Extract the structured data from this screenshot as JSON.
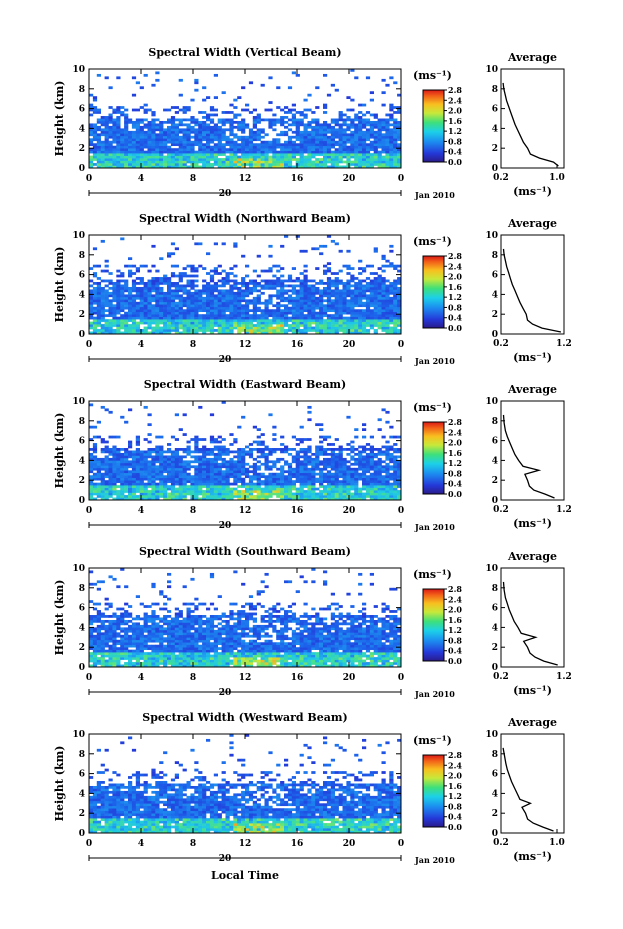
{
  "figure": {
    "xlabel": "Local Time",
    "date_label": "Jan 2010",
    "date_day": "20",
    "ylabel": "Height (km)",
    "colorbar_unit": "(ms⁻¹)",
    "colorbar_ticks": [
      "2.8",
      "2.4",
      "2.0",
      "1.6",
      "1.2",
      "0.8",
      "0.4",
      "0.0"
    ],
    "profile_title": "Average",
    "profile_xlabel": "(ms⁻¹)"
  },
  "chart_data": [
    {
      "type": "heatmap",
      "title": "Spectral Width (Vertical Beam)",
      "xlabel": "Local Time",
      "ylabel": "Height (km)",
      "x_ticks": [
        "0",
        "4",
        "8",
        "12",
        "16",
        "20",
        "0"
      ],
      "y_ticks": [
        "0",
        "2",
        "4",
        "6",
        "8",
        "10"
      ],
      "xlim": [
        0,
        24
      ],
      "ylim": [
        0,
        10
      ],
      "colorbar_range": [
        0.0,
        2.8
      ],
      "profile": {
        "title": "Average",
        "xlim": [
          0.2,
          1.1
        ],
        "x_ticks": [
          "0.2",
          "1.0"
        ],
        "y_ticks": [
          "0",
          "2",
          "4",
          "6",
          "8",
          "10"
        ],
        "height_km": [
          0.2,
          0.6,
          1.0,
          1.4,
          2.0,
          2.6,
          3.2,
          3.8,
          4.4,
          5.0,
          5.6,
          6.2,
          6.8,
          7.4,
          8.0,
          8.6
        ],
        "width": [
          1.02,
          0.95,
          0.75,
          0.62,
          0.58,
          0.52,
          0.48,
          0.44,
          0.4,
          0.37,
          0.34,
          0.31,
          0.28,
          0.26,
          0.24,
          0.23
        ]
      }
    },
    {
      "type": "heatmap",
      "title": "Spectral Width (Northward Beam)",
      "xlabel": "Local Time",
      "ylabel": "Height (km)",
      "x_ticks": [
        "0",
        "4",
        "8",
        "12",
        "16",
        "20",
        "0"
      ],
      "y_ticks": [
        "0",
        "2",
        "4",
        "6",
        "8",
        "10"
      ],
      "xlim": [
        0,
        24
      ],
      "ylim": [
        0,
        10
      ],
      "colorbar_range": [
        0.0,
        2.8
      ],
      "profile": {
        "title": "Average",
        "xlim": [
          0.2,
          1.2
        ],
        "x_ticks": [
          "0.2",
          "1.2"
        ],
        "y_ticks": [
          "0",
          "2",
          "4",
          "6",
          "8",
          "10"
        ],
        "height_km": [
          0.2,
          0.6,
          1.0,
          1.4,
          2.0,
          2.6,
          3.2,
          3.8,
          4.4,
          5.0,
          5.6,
          6.2,
          6.8,
          7.4,
          8.0,
          8.6
        ],
        "width": [
          1.15,
          0.85,
          0.7,
          0.62,
          0.6,
          0.55,
          0.5,
          0.46,
          0.42,
          0.38,
          0.35,
          0.32,
          0.29,
          0.27,
          0.25,
          0.24
        ]
      }
    },
    {
      "type": "heatmap",
      "title": "Spectral Width (Eastward Beam)",
      "xlabel": "Local Time",
      "ylabel": "Height (km)",
      "x_ticks": [
        "0",
        "4",
        "8",
        "12",
        "16",
        "20",
        "0"
      ],
      "y_ticks": [
        "0",
        "2",
        "4",
        "6",
        "8",
        "10"
      ],
      "xlim": [
        0,
        24
      ],
      "ylim": [
        0,
        10
      ],
      "colorbar_range": [
        0.0,
        2.8
      ],
      "profile": {
        "title": "Average",
        "xlim": [
          0.2,
          1.2
        ],
        "x_ticks": [
          "0.2",
          "1.2"
        ],
        "y_ticks": [
          "0",
          "2",
          "4",
          "6",
          "8",
          "10"
        ],
        "height_km": [
          0.2,
          0.6,
          1.0,
          1.4,
          2.0,
          2.6,
          3.0,
          3.4,
          4.0,
          4.6,
          5.2,
          5.8,
          6.4,
          7.0,
          7.8,
          8.6
        ],
        "width": [
          1.05,
          0.9,
          0.72,
          0.65,
          0.62,
          0.58,
          0.8,
          0.55,
          0.48,
          0.42,
          0.38,
          0.34,
          0.3,
          0.27,
          0.25,
          0.24
        ]
      }
    },
    {
      "type": "heatmap",
      "title": "Spectral Width (Southward Beam)",
      "xlabel": "Local Time",
      "ylabel": "Height (km)",
      "x_ticks": [
        "0",
        "4",
        "8",
        "12",
        "16",
        "20",
        "0"
      ],
      "y_ticks": [
        "0",
        "2",
        "4",
        "6",
        "8",
        "10"
      ],
      "xlim": [
        0,
        24
      ],
      "ylim": [
        0,
        10
      ],
      "colorbar_range": [
        0.0,
        2.8
      ],
      "profile": {
        "title": "Average",
        "xlim": [
          0.2,
          1.2
        ],
        "x_ticks": [
          "0.2",
          "1.2"
        ],
        "y_ticks": [
          "0",
          "2",
          "4",
          "6",
          "8",
          "10"
        ],
        "height_km": [
          0.2,
          0.6,
          1.0,
          1.4,
          2.0,
          2.6,
          3.0,
          3.4,
          4.0,
          4.6,
          5.2,
          5.8,
          6.4,
          7.0,
          7.8,
          8.6
        ],
        "width": [
          1.1,
          0.88,
          0.74,
          0.66,
          0.62,
          0.56,
          0.75,
          0.52,
          0.47,
          0.41,
          0.37,
          0.33,
          0.3,
          0.27,
          0.25,
          0.24
        ]
      }
    },
    {
      "type": "heatmap",
      "title": "Spectral Width (Westward Beam)",
      "xlabel": "Local Time",
      "ylabel": "Height (km)",
      "x_ticks": [
        "0",
        "4",
        "8",
        "12",
        "16",
        "20",
        "0"
      ],
      "y_ticks": [
        "0",
        "2",
        "4",
        "6",
        "8",
        "10"
      ],
      "xlim": [
        0,
        24
      ],
      "ylim": [
        0,
        10
      ],
      "colorbar_range": [
        0.0,
        2.8
      ],
      "profile": {
        "title": "Average",
        "xlim": [
          0.2,
          1.1
        ],
        "x_ticks": [
          "0.2",
          "1.0"
        ],
        "y_ticks": [
          "0",
          "2",
          "4",
          "6",
          "8",
          "10"
        ],
        "height_km": [
          0.2,
          0.6,
          1.0,
          1.4,
          2.0,
          2.6,
          3.0,
          3.4,
          4.0,
          4.6,
          5.2,
          5.8,
          6.4,
          7.0,
          7.8,
          8.6
        ],
        "width": [
          0.95,
          0.8,
          0.66,
          0.58,
          0.55,
          0.5,
          0.62,
          0.47,
          0.43,
          0.39,
          0.35,
          0.32,
          0.29,
          0.27,
          0.25,
          0.23
        ]
      }
    }
  ]
}
